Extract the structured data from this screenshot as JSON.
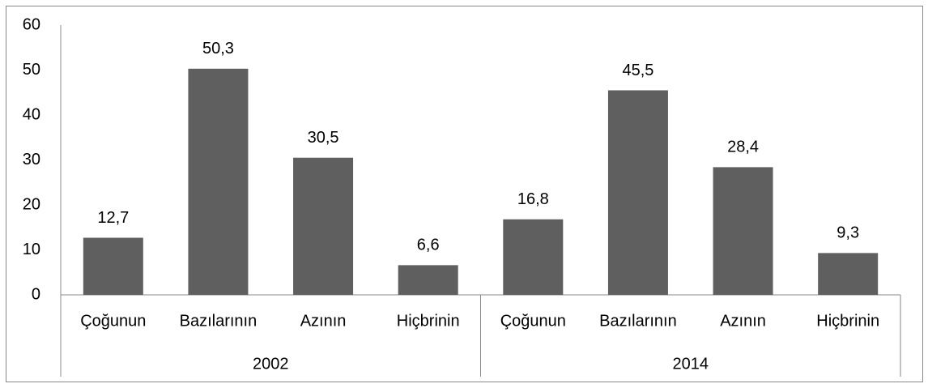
{
  "chart_data": {
    "type": "bar",
    "categories": [
      "Çoğunun",
      "Bazılarının",
      "Azının",
      "Hiçbrinin",
      "Çoğunun",
      "Bazılarının",
      "Azının",
      "Hiçbrinin"
    ],
    "group_labels": [
      "2002",
      "2014"
    ],
    "values": [
      12.7,
      50.3,
      30.5,
      6.6,
      16.8,
      45.5,
      28.4,
      9.3
    ],
    "value_labels": [
      "12,7",
      "50,3",
      "30,5",
      "6,6",
      "16,8",
      "45,5",
      "28,4",
      "9,3"
    ],
    "color": "#5f5f5f",
    "ylim": [
      0,
      60
    ],
    "yticks": [
      0,
      10,
      20,
      30,
      40,
      50,
      60
    ],
    "grid": false
  }
}
